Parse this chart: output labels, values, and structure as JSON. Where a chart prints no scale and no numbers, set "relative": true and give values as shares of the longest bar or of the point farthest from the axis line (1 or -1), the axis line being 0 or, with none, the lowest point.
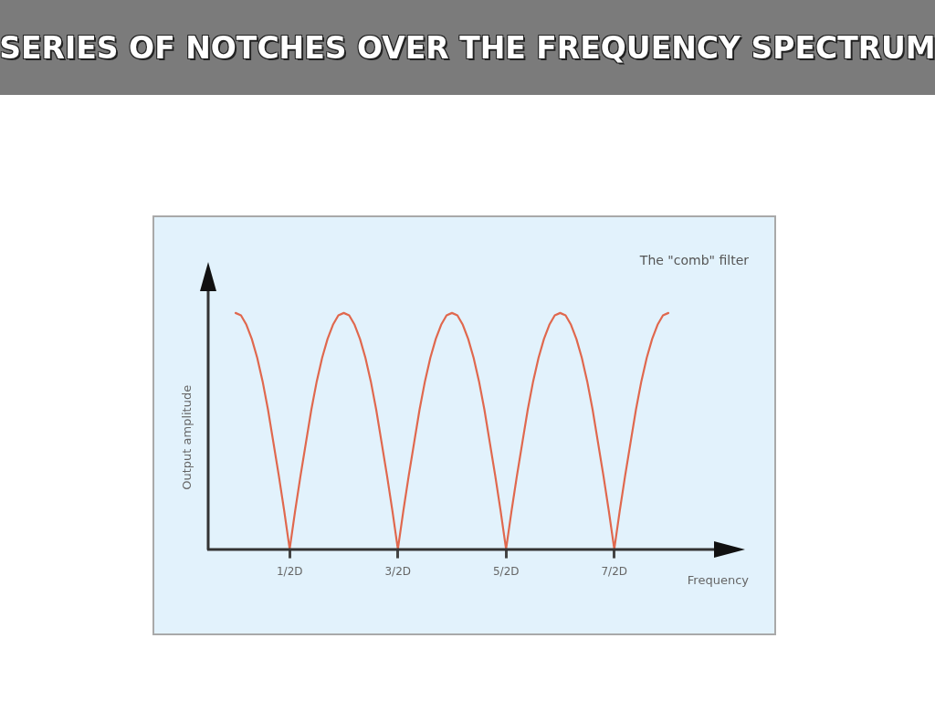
{
  "chart_data": {
    "type": "line",
    "title": "SERIES OF NOTCHES OVER THE FREQUENCY SPECTRUM",
    "xlabel": "Frequency",
    "ylabel": "Output amplitude",
    "annotations": [
      "The \"comb\" filter"
    ],
    "relative": true,
    "grid": false,
    "legend": false,
    "marker": "none",
    "line_style": "solid",
    "categories": [
      null,
      null,
      null,
      null,
      null,
      null,
      null,
      null,
      null,
      null,
      "1/2D",
      null,
      null,
      null,
      null,
      null,
      null,
      null,
      null,
      null,
      null,
      null,
      null,
      null,
      null,
      null,
      null,
      null,
      null,
      null,
      "3/2D",
      null,
      null,
      null,
      null,
      null,
      null,
      null,
      null,
      null,
      null,
      null,
      null,
      null,
      null,
      null,
      null,
      null,
      null,
      null,
      "5/2D",
      null,
      null,
      null,
      null,
      null,
      null,
      null,
      null,
      null,
      null,
      null,
      null,
      null,
      null,
      null,
      null,
      null,
      null,
      null,
      "7/2D",
      null,
      null,
      null,
      null,
      null,
      null,
      null,
      null,
      null,
      null
    ],
    "series": [
      {
        "color": "#e0684e",
        "values": [
          1,
          0.99,
          0.95,
          0.89,
          0.81,
          0.71,
          0.59,
          0.45,
          0.31,
          0.16,
          0,
          0.16,
          0.31,
          0.45,
          0.59,
          0.71,
          0.81,
          0.89,
          0.95,
          0.99,
          1,
          0.99,
          0.95,
          0.89,
          0.81,
          0.71,
          0.59,
          0.45,
          0.31,
          0.16,
          0,
          0.16,
          0.31,
          0.45,
          0.59,
          0.71,
          0.81,
          0.89,
          0.95,
          0.99,
          1,
          0.99,
          0.95,
          0.89,
          0.81,
          0.71,
          0.59,
          0.45,
          0.31,
          0.16,
          0,
          0.16,
          0.31,
          0.45,
          0.59,
          0.71,
          0.81,
          0.89,
          0.95,
          0.99,
          1,
          0.99,
          0.95,
          0.89,
          0.81,
          0.71,
          0.59,
          0.45,
          0.31,
          0.16,
          0,
          0.16,
          0.31,
          0.45,
          0.59,
          0.71,
          0.81,
          0.89,
          0.95,
          0.99,
          1
        ]
      }
    ]
  }
}
